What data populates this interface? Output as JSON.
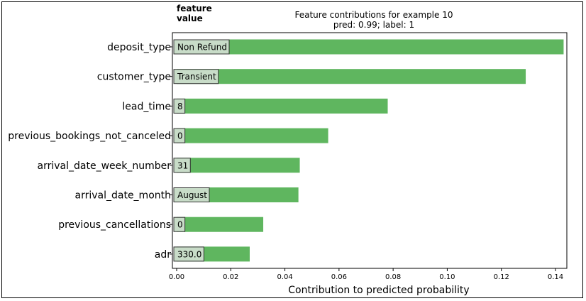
{
  "chart_data": {
    "type": "bar",
    "orientation": "horizontal",
    "title": "Feature contributions for example 10",
    "subtitle": "pred: 0.99; label: 1",
    "value_header": "feature\nvalue",
    "xlabel": "Contribution to predicted probability",
    "ylabel": "",
    "xlim": [
      0.0,
      0.145
    ],
    "xticks": [
      "0.00",
      "0.02",
      "0.04",
      "0.06",
      "0.08",
      "0.10",
      "0.12",
      "0.14"
    ],
    "bar_color": "#5fb65f",
    "label_box_color": "#c8dcc8",
    "grid": false,
    "rows": [
      {
        "feature": "deposit_type",
        "value_label": "Non Refund",
        "contribution": 0.143
      },
      {
        "feature": "customer_type",
        "value_label": "Transient",
        "contribution": 0.129
      },
      {
        "feature": "lead_time",
        "value_label": "8",
        "contribution": 0.078
      },
      {
        "feature": "previous_bookings_not_canceled",
        "value_label": "0",
        "contribution": 0.056
      },
      {
        "feature": "arrival_date_week_number",
        "value_label": "31",
        "contribution": 0.0455
      },
      {
        "feature": "arrival_date_month",
        "value_label": "August",
        "contribution": 0.045
      },
      {
        "feature": "previous_cancellations",
        "value_label": "0",
        "contribution": 0.032
      },
      {
        "feature": "adr",
        "value_label": "330.0",
        "contribution": 0.027
      }
    ]
  }
}
